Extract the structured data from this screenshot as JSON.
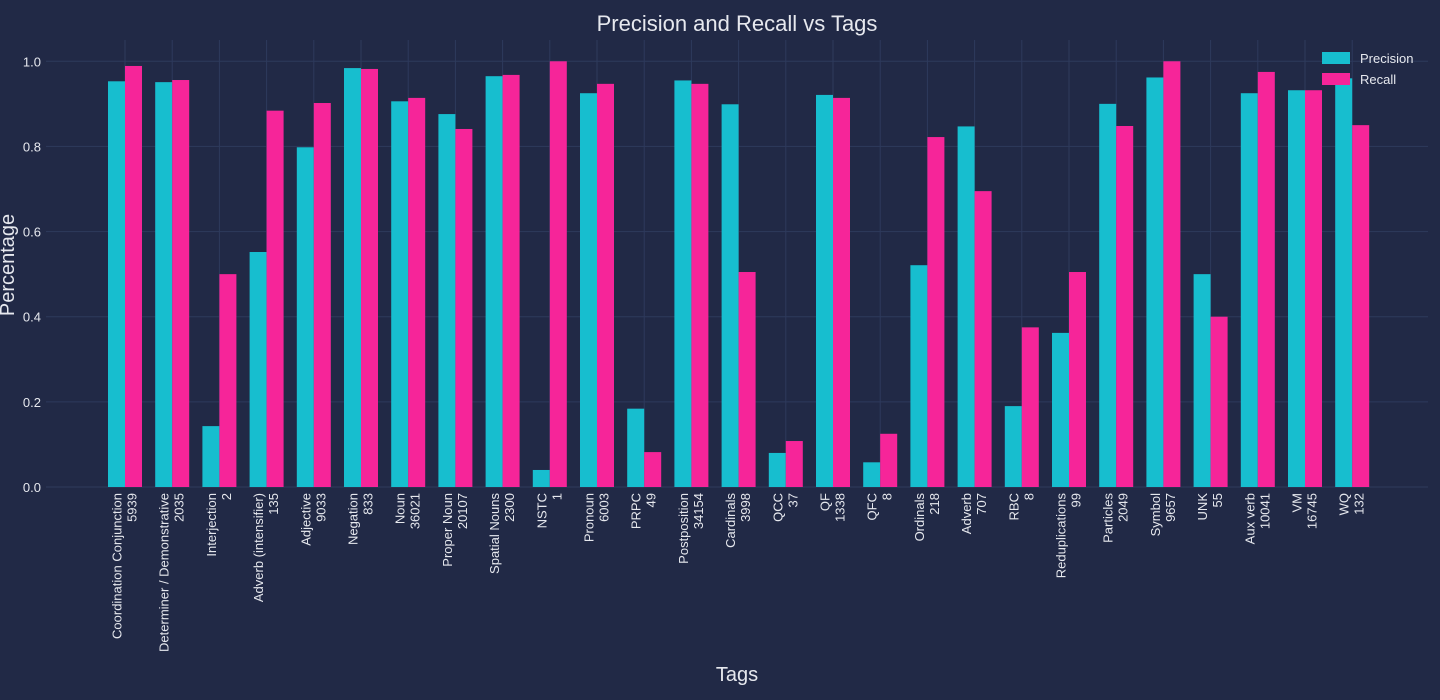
{
  "chart_data": {
    "type": "bar",
    "title": "Precision and Recall vs Tags",
    "xlabel": "Tags",
    "ylabel": "Percentage",
    "ylim": [
      0,
      1.05
    ],
    "yticks": [
      "0.0",
      "0.2",
      "0.4",
      "0.6",
      "0.8",
      "1.0"
    ],
    "grid": true,
    "legend_position": "top-right",
    "categories": [
      [
        "Coordination Conjunction",
        "5939"
      ],
      [
        "Determiner / Demonstrative",
        "2035"
      ],
      [
        "Interjection",
        "2"
      ],
      [
        "Adverb (intensifier)",
        "135"
      ],
      [
        "Adjective",
        "9033"
      ],
      [
        "Negation",
        "833"
      ],
      [
        "Noun",
        "36021"
      ],
      [
        "Proper Noun",
        "20107"
      ],
      [
        "Spatial Nouns",
        "2300"
      ],
      [
        "NSTC",
        "1"
      ],
      [
        "Pronoun",
        "6003"
      ],
      [
        "PRPC",
        "49"
      ],
      [
        "Postposition",
        "34154"
      ],
      [
        "Cardinals",
        "3998"
      ],
      [
        "QCC",
        "37"
      ],
      [
        "QF",
        "1338"
      ],
      [
        "QFC",
        "8"
      ],
      [
        "Ordinals",
        "218"
      ],
      [
        "Adverb",
        "707"
      ],
      [
        "RBC",
        "8"
      ],
      [
        "Reduplications",
        "99"
      ],
      [
        "Particles",
        "2049"
      ],
      [
        "Symbol",
        "9657"
      ],
      [
        "UNK",
        "55"
      ],
      [
        "Aux verb",
        "10041"
      ],
      [
        "VM",
        "16745"
      ],
      [
        "WQ",
        "132"
      ]
    ],
    "series": [
      {
        "name": "Precision",
        "color": "#17becf",
        "values": [
          0.953,
          0.951,
          0.143,
          0.552,
          0.798,
          0.984,
          0.906,
          0.876,
          0.965,
          0.04,
          0.925,
          0.184,
          0.955,
          0.899,
          0.08,
          0.921,
          0.058,
          0.521,
          0.847,
          0.19,
          0.362,
          0.9,
          0.962,
          0.5,
          0.925,
          0.932,
          0.96
        ]
      },
      {
        "name": "Recall",
        "color": "#f62599",
        "values": [
          0.989,
          0.956,
          0.5,
          0.884,
          0.902,
          0.982,
          0.914,
          0.841,
          0.968,
          1.0,
          0.947,
          0.082,
          0.947,
          0.505,
          0.108,
          0.914,
          0.125,
          0.822,
          0.695,
          0.375,
          0.505,
          0.848,
          1.0,
          0.4,
          0.975,
          0.932,
          0.85
        ]
      }
    ]
  }
}
